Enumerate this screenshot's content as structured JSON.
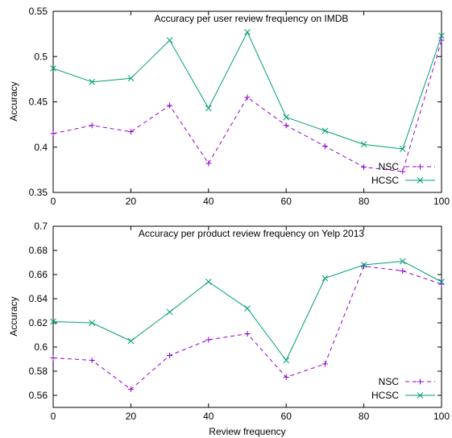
{
  "colors": {
    "nsc": "#9400d3",
    "hcsc": "#009e73",
    "axis": "#000000"
  },
  "chart_data": [
    {
      "type": "line",
      "title": "Accuracy per user review frequency on IMDB",
      "xlabel": "",
      "ylabel": "Accuracy",
      "xlim": [
        0,
        100
      ],
      "ylim": [
        0.35,
        0.55
      ],
      "xticks": [
        0,
        20,
        40,
        60,
        80,
        100
      ],
      "xtick_labels": [
        "0",
        "20",
        "40",
        "60",
        "80",
        "100"
      ],
      "yticks": [
        0.35,
        0.4,
        0.45,
        0.5,
        0.55
      ],
      "ytick_labels": [
        "0.35",
        "0.4",
        "0.45",
        "0.5",
        "0.55"
      ],
      "legend_position": "bottom-right",
      "grid": false,
      "x": [
        0,
        10,
        20,
        30,
        40,
        50,
        60,
        70,
        80,
        90,
        100
      ],
      "series": [
        {
          "name": "NSC",
          "style": "dashed",
          "marker": "plus",
          "values": [
            0.415,
            0.424,
            0.417,
            0.446,
            0.382,
            0.455,
            0.424,
            0.401,
            0.378,
            0.373,
            0.518
          ]
        },
        {
          "name": "HCSC",
          "style": "solid",
          "marker": "cross",
          "values": [
            0.487,
            0.472,
            0.476,
            0.518,
            0.443,
            0.527,
            0.433,
            0.418,
            0.403,
            0.398,
            0.523
          ]
        }
      ]
    },
    {
      "type": "line",
      "title": "Accuracy per product review frequency on Yelp 2013",
      "xlabel": "Review frequency",
      "ylabel": "Accuracy",
      "xlim": [
        0,
        100
      ],
      "ylim": [
        0.55,
        0.7
      ],
      "xticks": [
        0,
        20,
        40,
        60,
        80,
        100
      ],
      "xtick_labels": [
        "0",
        "20",
        "40",
        "60",
        "80",
        "100"
      ],
      "yticks": [
        0.56,
        0.58,
        0.6,
        0.62,
        0.64,
        0.66,
        0.68,
        0.7
      ],
      "ytick_labels": [
        "0.56",
        "0.58",
        "0.6",
        "0.62",
        "0.64",
        "0.66",
        "0.68",
        "0.7"
      ],
      "legend_position": "bottom-right",
      "grid": false,
      "x": [
        0,
        10,
        20,
        30,
        40,
        50,
        60,
        70,
        80,
        90,
        100
      ],
      "series": [
        {
          "name": "NSC",
          "style": "dashed",
          "marker": "plus",
          "values": [
            0.591,
            0.589,
            0.565,
            0.593,
            0.606,
            0.611,
            0.575,
            0.586,
            0.667,
            0.663,
            0.652
          ]
        },
        {
          "name": "HCSC",
          "style": "solid",
          "marker": "cross",
          "values": [
            0.621,
            0.62,
            0.605,
            0.629,
            0.654,
            0.632,
            0.589,
            0.657,
            0.668,
            0.671,
            0.654
          ]
        }
      ]
    }
  ]
}
